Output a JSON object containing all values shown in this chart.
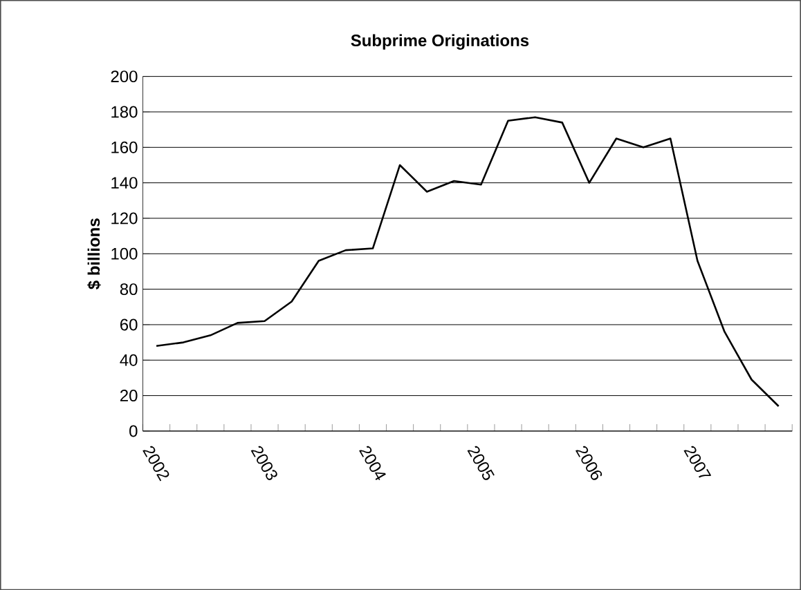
{
  "chart_data": {
    "type": "line",
    "title": "Subprime Originations",
    "ylabel": "$ billions",
    "categories": [
      "2002",
      null,
      null,
      null,
      "2003",
      null,
      null,
      null,
      "2004",
      null,
      null,
      null,
      "2005",
      null,
      null,
      null,
      "2006",
      null,
      null,
      null,
      "2007",
      null,
      null,
      null
    ],
    "series": [
      {
        "color": "#000000",
        "values": [
          48,
          50,
          54,
          61,
          62,
          73,
          96,
          102,
          103,
          150,
          135,
          141,
          139,
          175,
          177,
          174,
          140,
          165,
          160,
          165,
          96,
          56,
          29,
          14
        ]
      }
    ],
    "ylim": [
      0,
      200
    ],
    "yticks": [
      0,
      20,
      40,
      60,
      80,
      100,
      120,
      140,
      160,
      180,
      200
    ],
    "grid": "y",
    "legend": false,
    "marker": "none",
    "line_style": "solid"
  }
}
